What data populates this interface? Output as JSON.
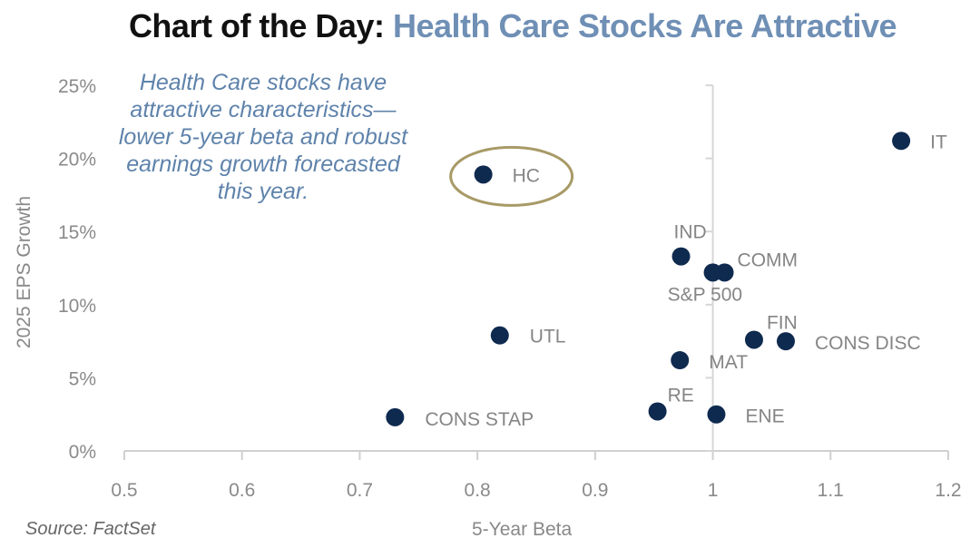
{
  "title": {
    "part1": "Chart of the Day:",
    "part2": "Health Care Stocks Are Attractive"
  },
  "annotation": "Health Care stocks have attractive characteristics— lower 5-year beta and robust earnings growth forecasted this year.",
  "source": "Source: FactSet",
  "colors": {
    "point": "#0f2a4f",
    "highlight_ring": "#a89a66",
    "title_accent": "#6f8fb5"
  },
  "chart_data": {
    "type": "scatter",
    "title": "Chart of the Day: Health Care Stocks Are Attractive",
    "xlabel": "5-Year Beta",
    "ylabel": "2025 EPS Growth",
    "xlim": [
      0.5,
      1.2
    ],
    "ylim": [
      0,
      25
    ],
    "xticks": [
      "0.5",
      "0.6",
      "0.7",
      "0.8",
      "0.9",
      "1",
      "1.1",
      "1.2"
    ],
    "yticks": [
      "0%",
      "5%",
      "10%",
      "15%",
      "20%",
      "25%"
    ],
    "grid": false,
    "highlight": "HC",
    "points": [
      {
        "label": "IT",
        "x": 1.16,
        "y": 21.2
      },
      {
        "label": "HC",
        "x": 0.805,
        "y": 18.9
      },
      {
        "label": "IND",
        "x": 0.973,
        "y": 13.3
      },
      {
        "label": "S&P 500",
        "x": 1.0,
        "y": 12.2
      },
      {
        "label": "COMM",
        "x": 1.01,
        "y": 12.2
      },
      {
        "label": "UTL",
        "x": 0.819,
        "y": 7.9
      },
      {
        "label": "FIN",
        "x": 1.035,
        "y": 7.6
      },
      {
        "label": "CONS DISC",
        "x": 1.062,
        "y": 7.5
      },
      {
        "label": "MAT",
        "x": 0.972,
        "y": 6.2
      },
      {
        "label": "RE",
        "x": 0.953,
        "y": 2.7
      },
      {
        "label": "ENE",
        "x": 1.003,
        "y": 2.5
      },
      {
        "label": "CONS STAP",
        "x": 0.73,
        "y": 2.3
      }
    ]
  }
}
